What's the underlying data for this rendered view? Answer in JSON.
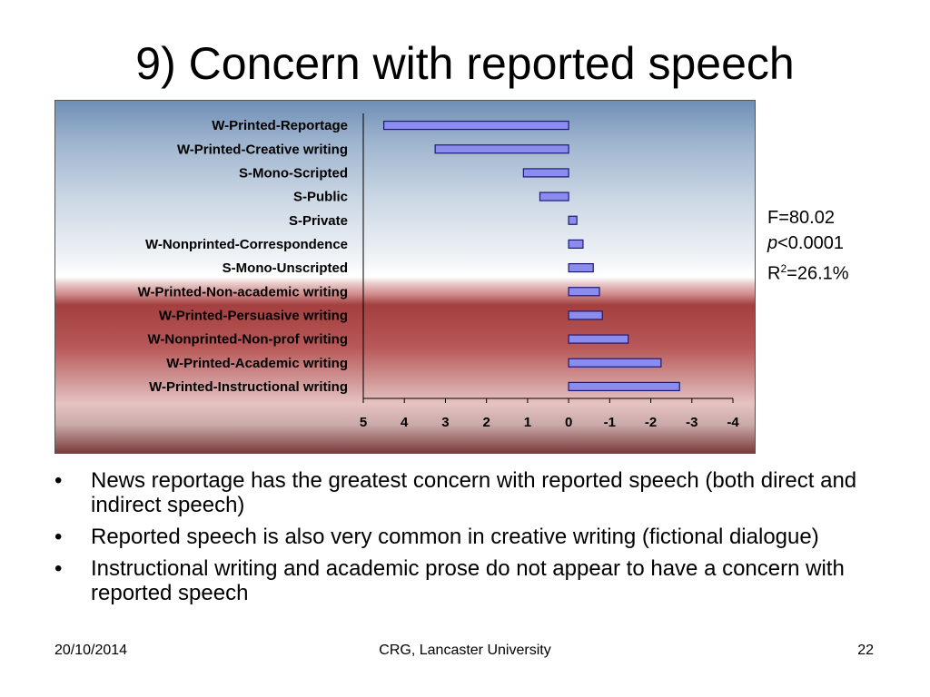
{
  "slide": {
    "title": "9) Concern with reported speech",
    "stats": {
      "f_text": "F=80.02",
      "p_symbol": "p",
      "p_value": "<0.0001",
      "r_prefix": "R",
      "r_sup": "2",
      "r_value": "=26.1%"
    },
    "bullets": [
      "News reportage has the greatest concern with reported speech (both direct and indirect speech)",
      "Reported speech is also very common in creative writing (fictional dialogue)",
      "Instructional writing and academic prose do not appear to have a concern with reported speech"
    ],
    "bullet_symbol": "•",
    "footer": {
      "date": "20/10/2014",
      "source": "CRG, Lancaster University",
      "page": "22"
    }
  },
  "chart_data": {
    "type": "bar",
    "orientation": "horizontal",
    "x_axis_reversed": true,
    "categories": [
      "W-Printed-Reportage",
      "W-Printed-Creative writing",
      "S-Mono-Scripted",
      "S-Public",
      "S-Private",
      "W-Nonprinted-Correspondence",
      "S-Mono-Unscripted",
      "W-Printed-Non-academic writing",
      "W-Printed-Persuasive writing",
      "W-Nonprinted-Non-prof writing",
      "W-Printed-Academic writing",
      "W-Printed-Instructional writing"
    ],
    "values": [
      4.5,
      3.25,
      1.1,
      0.7,
      -0.2,
      -0.35,
      -0.6,
      -0.75,
      -0.82,
      -1.45,
      -2.25,
      -2.7
    ],
    "xlim": [
      5,
      -4
    ],
    "ticks": [
      "5",
      "4",
      "3",
      "2",
      "1",
      "0",
      "-1",
      "-2",
      "-3",
      "-4"
    ],
    "title": "",
    "xlabel": "",
    "ylabel": "",
    "grid": false,
    "bar_color": "#8c8cf0",
    "bar_border": "#1a1a70"
  }
}
